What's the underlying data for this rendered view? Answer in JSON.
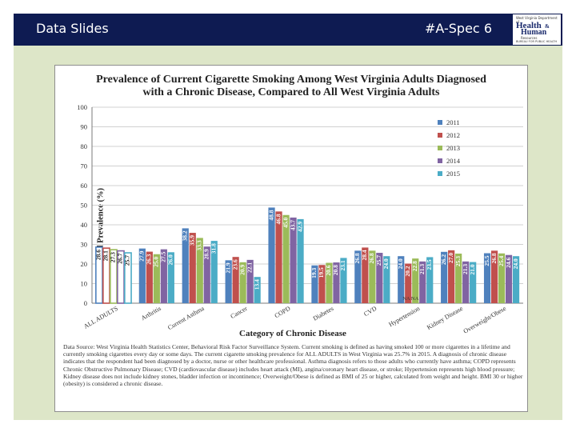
{
  "header": {
    "left_title": "Data Slides",
    "right_title": "#A-Spec 6",
    "logo": {
      "small_top": "West Virginia Department of",
      "big_1": "Health",
      "amp": "&",
      "big_2": "Human",
      "small_mid": "Resources",
      "small_bottom": "BUREAU FOR PUBLIC HEALTH"
    }
  },
  "colors": {
    "header_bg": "#0e1b52",
    "panel_bg": "#dde6c8",
    "series": [
      "#4f81bd",
      "#c0504d",
      "#9bbb59",
      "#8064a2",
      "#4bacc6"
    ]
  },
  "chart_data": {
    "type": "bar",
    "title_line1": "Prevalence of Current Cigarette Smoking Among West Virginia Adults Diagnosed",
    "title_line2": "with a Chronic Disease, Compared to All West Virginia Adults",
    "xlabel": "Category of Chronic Disease",
    "ylabel": "Estimated Prevalence (%)",
    "ylim": [
      0,
      100
    ],
    "yticks": [
      0,
      10,
      20,
      30,
      40,
      50,
      60,
      70,
      80,
      90,
      100
    ],
    "legend_position": "right",
    "categories": [
      "ALL ADULTS",
      "Arthritis",
      "Current Asthma",
      "Cancer",
      "COPD",
      "Diabetes",
      "CVD",
      "Hypertension",
      "Kidney Disease",
      "Overweight/Obese"
    ],
    "series": [
      {
        "name": "2011",
        "values": [
          28.6,
          27.9,
          38.2,
          21.9,
          48.8,
          19.3,
          26.8,
          24.0,
          26.2,
          25.5
        ]
      },
      {
        "name": "2012",
        "values": [
          28.1,
          26.3,
          35.9,
          23.6,
          46.8,
          19.5,
          28.4,
          20.2,
          27.0,
          26.8
        ]
      },
      {
        "name": "2013",
        "values": [
          27.3,
          25.0,
          33.3,
          20.9,
          45.0,
          20.6,
          26.8,
          22.8,
          25.3,
          25.4
        ]
      },
      {
        "name": "2014",
        "values": [
          26.7,
          27.5,
          28.9,
          22.1,
          43.7,
          20.8,
          25.7,
          21.3,
          21.3,
          24.6
        ]
      },
      {
        "name": "2015",
        "values": [
          25.7,
          26.0,
          31.8,
          13.4,
          42.9,
          23.1,
          24.0,
          23.5,
          21.0,
          24.0
        ]
      }
    ],
    "annotation": "NA NA",
    "footnote": "Data Source: West Virginia Health Statistics Center, Behavioral Risk Factor Surveillance System. Current smoking is defined as having smoked 100 or more cigarettes in a lifetime and currently smoking cigarettes every day or some days. The current cigarette smoking prevalence for ALL ADULTS in West Virginia was 25.7% in 2015. A diagnosis of chronic disease indicates that the respondent had been diagnosed by a doctor, nurse or other healthcare professional. Asthma diagnosis refers to those adults who currently have asthma; COPD represents Chronic Obstructive Pulmonary Disease; CVD (cardiovascular disease) includes heart attack (MI), angina/coronary heart disease, or stroke; Hypertension represents high blood pressure; Kidney disease does not include kidney stones, bladder infection or incontinence; Overweight/Obese is defined as BMI of 25 or higher, calculated from weight and height. BMI 30 or higher (obesity) is considered a chronic disease."
  }
}
